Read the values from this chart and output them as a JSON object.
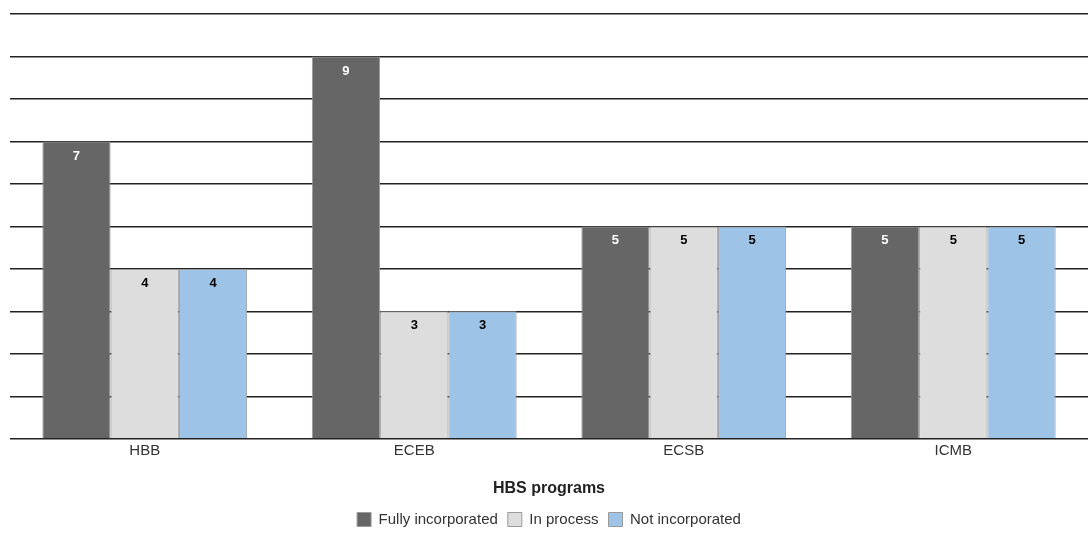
{
  "chart_data": {
    "type": "bar",
    "xlabel": "HBS programs",
    "categories": [
      "HBB",
      "ECEB",
      "ECSB",
      "ICMB"
    ],
    "series": [
      {
        "name": "Fully incorporated",
        "color": "#666666",
        "values": [
          7,
          9,
          5,
          5
        ]
      },
      {
        "name": "In process",
        "color": "#dddddd",
        "values": [
          4,
          3,
          5,
          5
        ]
      },
      {
        "name": "Not incorporated",
        "color": "#9dc3e6",
        "values": [
          4,
          3,
          5,
          5
        ]
      }
    ],
    "ylim": [
      0,
      10
    ],
    "yticks": [
      {
        "value": 0,
        "label": null
      },
      {
        "value": 1,
        "label": null
      },
      {
        "value": 2,
        "label": null
      },
      {
        "value": 3,
        "label": null
      },
      {
        "value": 4,
        "label": null
      },
      {
        "value": 5,
        "label": null
      },
      {
        "value": 6,
        "label": null
      },
      {
        "value": 7,
        "label": null
      },
      {
        "value": 8,
        "label": null
      },
      {
        "value": 9,
        "label": null
      },
      {
        "value": 10,
        "label": null
      }
    ],
    "tick_labels": "x",
    "grid": "y",
    "legend": "bottom",
    "data_labels": true
  }
}
